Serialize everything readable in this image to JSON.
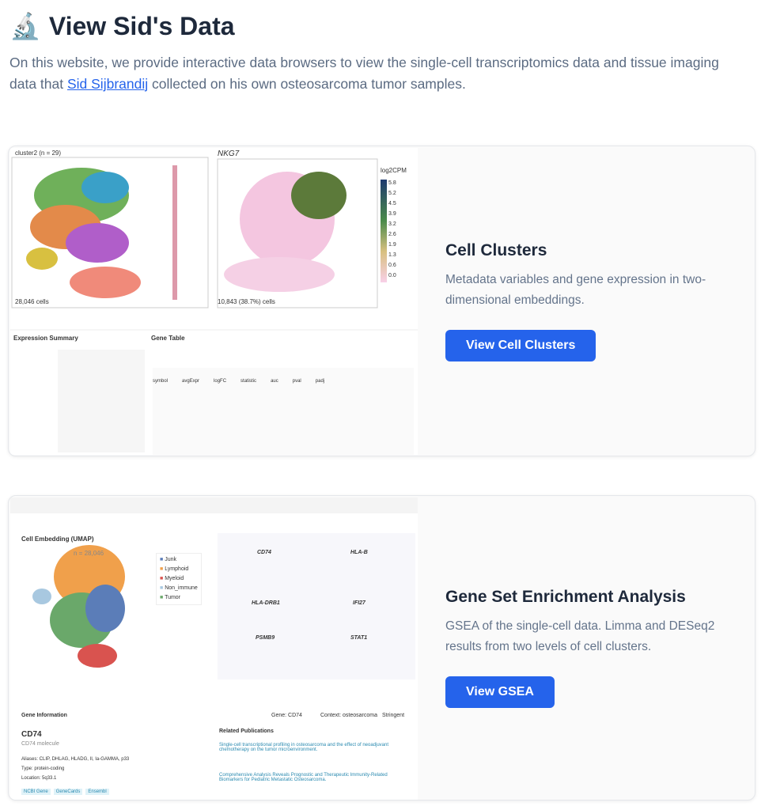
{
  "header": {
    "icon": "microscope-icon",
    "title": "View Sid's Data",
    "intro_before": "On this website, we provide interactive data browsers to view the single-cell transcriptomics data and tissue imaging data that ",
    "intro_link": "Sid Sijbrandij",
    "intro_after": " collected on his own osteosarcoma tumor samples."
  },
  "cards": [
    {
      "title": "Cell Clusters",
      "description": "Metadata variables and gene expression in two-dimensional embeddings.",
      "button": "View Cell Clusters",
      "preview": {
        "panel1_title": "cluster2 (n = 29)",
        "panel1_count": "28,046 cells",
        "panel2_title": "NKG7",
        "panel2_count": "10,843 (38.7%) cells",
        "colorbar_label": "log2CPM",
        "colorbar_ticks": [
          "5.8",
          "5.2",
          "4.5",
          "3.9",
          "3.2",
          "2.6",
          "1.9",
          "1.3",
          "0.6",
          "0.0"
        ],
        "expression_summary": "Expression Summary",
        "gene_table": "Gene Table",
        "table_headers": [
          "symbol",
          "avgExpr",
          "logFC",
          "statistic",
          "auc",
          "pval",
          "padj"
        ]
      }
    },
    {
      "title": "Gene Set Enrichment Analysis",
      "description": "GSEA of the single-cell data. Limma and DESeq2 results from two levels of cell clusters.",
      "button": "View GSEA",
      "preview": {
        "embedding_title": "Cell Embedding (UMAP)",
        "embedding_count": "n = 28,046",
        "legend": [
          "Junk",
          "Lymphoid",
          "Myeloid",
          "Non_immune",
          "Tumor"
        ],
        "legend_colors": [
          "#5b7db8",
          "#f0a04b",
          "#d9534f",
          "#a8c8e0",
          "#6aa86a"
        ],
        "genes": [
          "CD74",
          "HLA-B",
          "HLA-DRB1",
          "IFI27",
          "PSMB9",
          "STAT1"
        ],
        "gene_info_title": "Gene Information",
        "gene_label": "Gene: CD74",
        "context_label": "Context: osteosarcoma",
        "stringent": "Stringent",
        "gene_symbol": "CD74",
        "gene_name": "CD74 molecule",
        "aliases": "Aliases: CLIP, DHLAG, HLADG, II, Ia-GAMMA, p33",
        "type": "Type: protein-coding",
        "location": "Location: 5q33.1",
        "links": [
          "NCBI Gene",
          "GeneCards",
          "Ensembl"
        ],
        "publications_title": "Related Publications",
        "pub1": "Single-cell transcriptional profiling in osteosarcoma and the effect of neoadjuvant chemotherapy on the tumor microenvironment.",
        "pub2": "Comprehensive Analysis Reveals Prognostic and Therapeutic Immunity-Related Biomarkers for Pediatric Metastatic Osteosarcoma."
      }
    }
  ]
}
